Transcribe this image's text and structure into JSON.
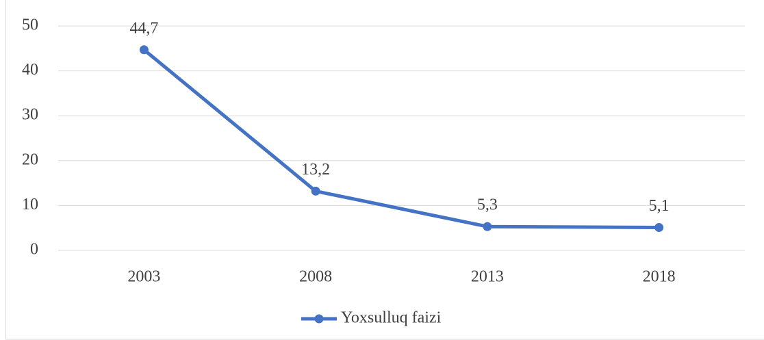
{
  "chart_data": {
    "type": "line",
    "categories": [
      "2003",
      "2008",
      "2013",
      "2018"
    ],
    "series": [
      {
        "name": "Yoxsulluq faizi",
        "color": "#4472c4",
        "values": [
          44.7,
          13.2,
          5.3,
          5.1
        ],
        "value_labels": [
          "44,7",
          "13,2",
          "5,3",
          "5,1"
        ]
      }
    ],
    "ylim": [
      0,
      50
    ],
    "yticks": [
      0,
      10,
      20,
      30,
      40,
      50
    ],
    "grid": true,
    "legend": "bottom"
  }
}
